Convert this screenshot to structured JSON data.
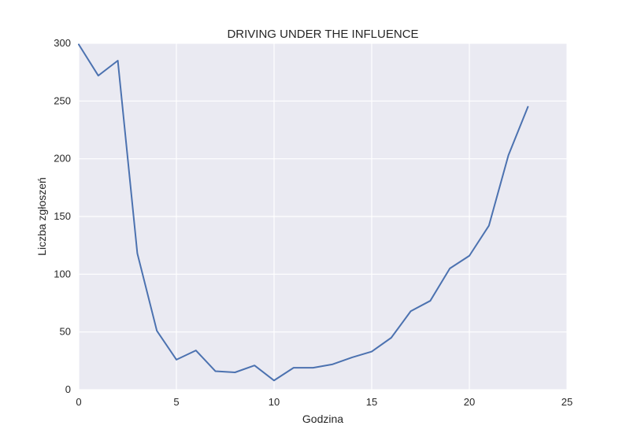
{
  "chart_data": {
    "type": "line",
    "title": "DRIVING UNDER THE INFLUENCE",
    "xlabel": "Godzina",
    "ylabel": "Liczba zgłoszeń",
    "xlim": [
      0,
      25
    ],
    "ylim": [
      0,
      300
    ],
    "xticks": [
      "0",
      "5",
      "10",
      "15",
      "20",
      "25"
    ],
    "yticks": [
      "0",
      "50",
      "100",
      "150",
      "200",
      "250",
      "300"
    ],
    "grid": true,
    "series": [
      {
        "color": "#4c72b0",
        "x": [
          0,
          1,
          2,
          3,
          4,
          5,
          6,
          7,
          8,
          9,
          10,
          11,
          12,
          13,
          14,
          15,
          16,
          17,
          18,
          19,
          20,
          21,
          22,
          23
        ],
        "values": [
          299,
          272,
          285,
          118,
          51,
          26,
          34,
          16,
          15,
          21,
          8,
          19,
          19,
          22,
          28,
          33,
          45,
          68,
          77,
          105,
          116,
          142,
          203,
          245
        ]
      }
    ]
  }
}
